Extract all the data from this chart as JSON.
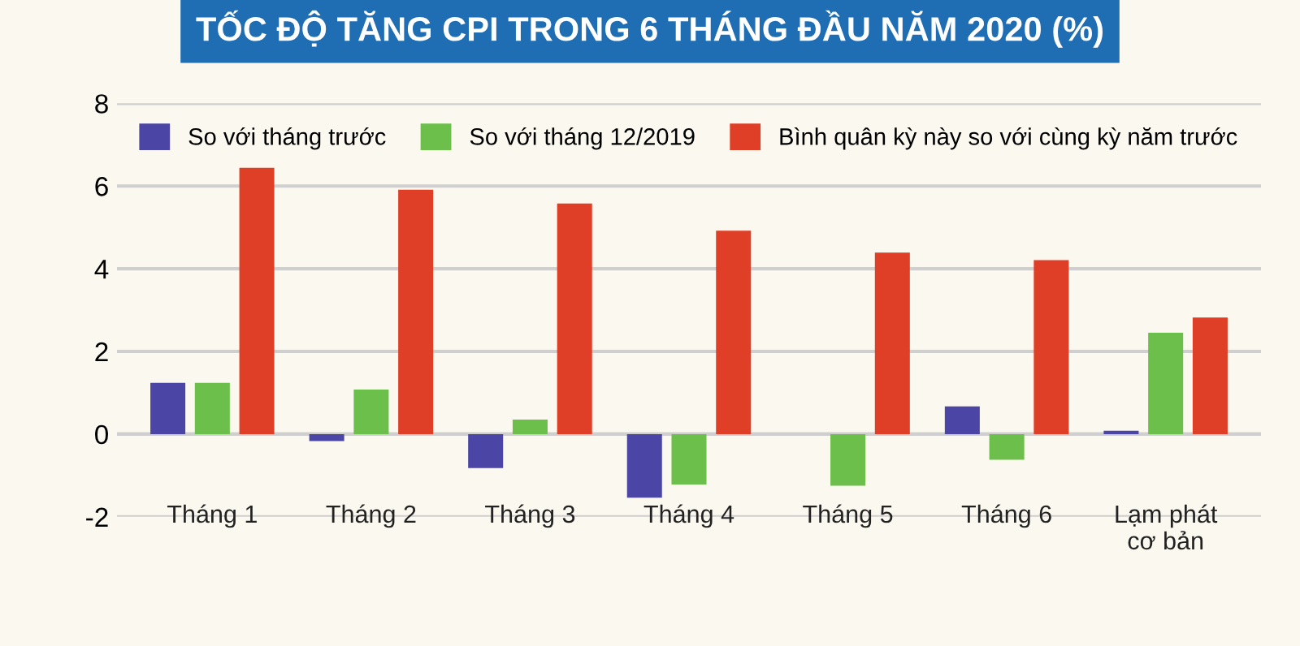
{
  "chart_data": {
    "type": "bar",
    "title": "TỐC ĐỘ TĂNG CPI TRONG 6 THÁNG ĐẦU NĂM 2020 (%)",
    "categories": [
      "Tháng 1",
      "Tháng 2",
      "Tháng 3",
      "Tháng 4",
      "Tháng 5",
      "Tháng 6",
      "Lạm phát\ncơ bản"
    ],
    "series": [
      {
        "name": "So với tháng trước",
        "color": "#4b46a6",
        "values": [
          1.24,
          -0.17,
          -0.82,
          -1.54,
          0,
          0.67,
          0.08
        ]
      },
      {
        "name": "So với tháng 12/2019",
        "color": "#6cbf4a",
        "values": [
          1.24,
          1.08,
          0.35,
          -1.22,
          -1.25,
          -0.62,
          2.45
        ]
      },
      {
        "name": "Bình quân kỳ này so với cùng kỳ năm trước",
        "color": "#df3f27",
        "values": [
          6.44,
          5.91,
          5.58,
          4.92,
          4.39,
          4.21,
          2.82
        ]
      }
    ],
    "ylim": [
      -2,
      8
    ],
    "yticks": [
      {
        "value": -2,
        "label": "-2"
      },
      0,
      2,
      4,
      6,
      8
    ],
    "grid": "y",
    "legend": "top"
  }
}
